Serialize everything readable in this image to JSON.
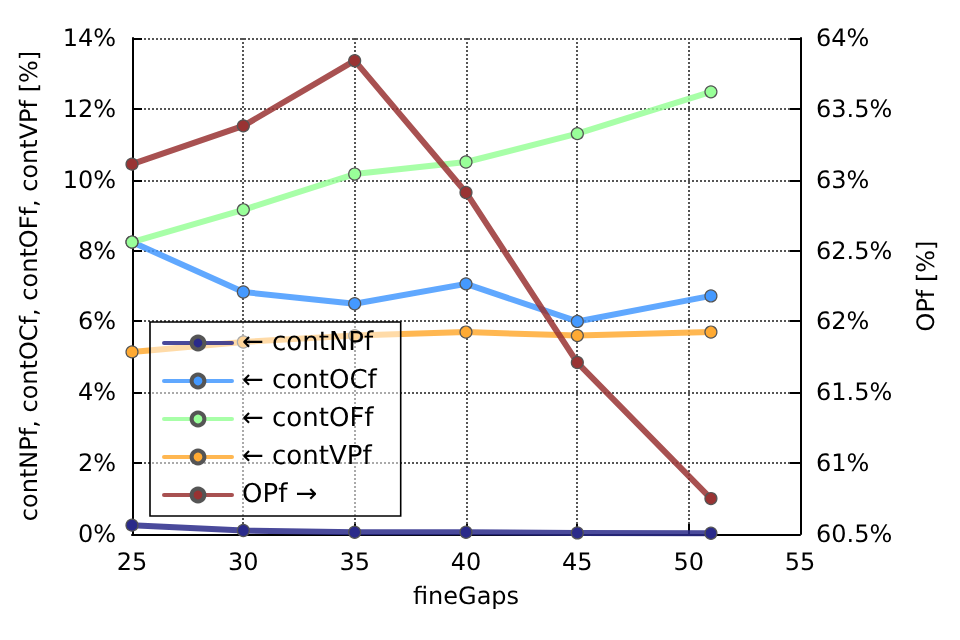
{
  "chart_data": {
    "type": "line",
    "xlabel": "fineGaps",
    "ylabel": "contNPf, contOCf, contOFf, contVPf [%]",
    "y2label": "OPf [%]",
    "x": [
      25,
      30,
      35,
      40,
      45,
      51
    ],
    "series": [
      {
        "name": "← contNPf",
        "color": "#2a2a8a",
        "values": [
          0.25,
          0.1,
          0.05,
          0.05,
          0.03,
          0.02
        ]
      },
      {
        "name": "← contOCf",
        "color": "#4499ff",
        "values": [
          8.24,
          6.83,
          6.5,
          7.06,
          6.0,
          6.72
        ]
      },
      {
        "name": "← contOFf",
        "color": "#99ff99",
        "values": [
          8.24,
          9.15,
          10.16,
          10.5,
          11.3,
          12.48
        ]
      },
      {
        "name": "← contVPf",
        "color": "#ffaa33",
        "values": [
          5.14,
          5.42,
          5.6,
          5.7,
          5.6,
          5.7
        ]
      },
      {
        "name": "OPf →",
        "color": "#993333",
        "axis": "y2",
        "values": [
          63.11,
          63.38,
          63.84,
          62.91,
          61.71,
          60.75
        ]
      }
    ],
    "xlim": [
      25,
      55
    ],
    "xticks": [
      25,
      30,
      35,
      40,
      45,
      50,
      55
    ],
    "ylim": [
      0,
      14
    ],
    "yticks": [
      {
        "value": 0,
        "label": "0%"
      },
      {
        "value": 2,
        "label": "2%"
      },
      {
        "value": 4,
        "label": "4%"
      },
      {
        "value": 6,
        "label": "6%"
      },
      {
        "value": 8,
        "label": "8%"
      },
      {
        "value": 10,
        "label": "10%"
      },
      {
        "value": 12,
        "label": "12%"
      },
      {
        "value": 14,
        "label": "14%"
      }
    ],
    "y2lim": [
      60.5,
      64
    ],
    "y2ticks": [
      {
        "value": 60.5,
        "label": "60.5%"
      },
      {
        "value": 61,
        "label": "61%"
      },
      {
        "value": 61.5,
        "label": "61.5%"
      },
      {
        "value": 62,
        "label": "62%"
      },
      {
        "value": 62.5,
        "label": "62.5%"
      },
      {
        "value": 63,
        "label": "63%"
      },
      {
        "value": 63.5,
        "label": "63.5%"
      },
      {
        "value": 64,
        "label": "64%"
      }
    ],
    "grid": true,
    "legend": "bottom left",
    "marker": "circle",
    "line_style": "solid"
  }
}
